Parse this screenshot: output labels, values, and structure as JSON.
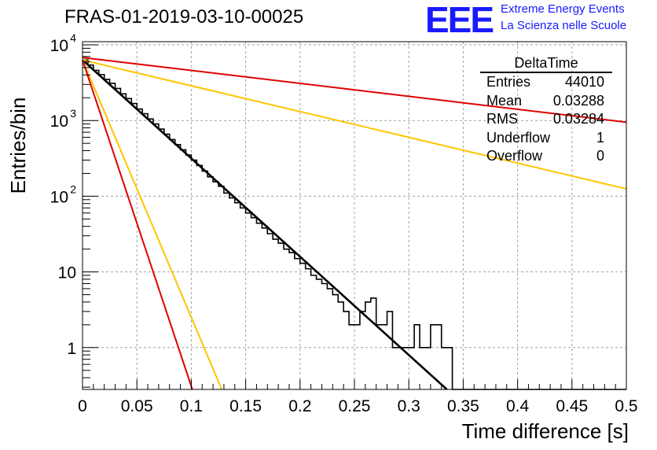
{
  "title": "FRAS-01-2019-03-10-00025",
  "logo": {
    "mark": "EEE",
    "line1": "Extreme Energy Events",
    "line2": "La Scienza nelle Scuole"
  },
  "stats": {
    "title": "DeltaTime",
    "rows": [
      {
        "label": "Entries",
        "value": "44010"
      },
      {
        "label": "Mean",
        "value": "0.03288"
      },
      {
        "label": "RMS",
        "value": "0.03284"
      },
      {
        "label": "Underflow",
        "value": "1"
      },
      {
        "label": "Overflow",
        "value": "0"
      }
    ]
  },
  "chart_data": {
    "type": "line",
    "xlabel": "Time difference [s]",
    "ylabel": "Entries/bin",
    "xlim": [
      0,
      0.5
    ],
    "ylim": [
      0.28,
      11000
    ],
    "yscale": "log",
    "grid": true,
    "x_ticks": [
      "0",
      "0.05",
      "0.1",
      "0.15",
      "0.2",
      "0.25",
      "0.3",
      "0.35",
      "0.4",
      "0.45",
      "0.5"
    ],
    "y_ticks": [
      {
        "value": 1,
        "label": "1"
      },
      {
        "value": 10,
        "label": "10"
      },
      {
        "value": 100,
        "label": "10",
        "exp": "2"
      },
      {
        "value": 1000,
        "label": "10",
        "exp": "3"
      },
      {
        "value": 10000,
        "label": "10",
        "exp": "4"
      }
    ],
    "histogram": {
      "color": "#000000",
      "bin_width": 0.005,
      "values": [
        6300,
        5400,
        4600,
        4050,
        3500,
        3100,
        2650,
        2250,
        1950,
        1680,
        1420,
        1230,
        1050,
        900,
        770,
        660,
        560,
        480,
        410,
        350,
        300,
        255,
        215,
        180,
        155,
        135,
        110,
        95,
        82,
        70,
        60,
        52,
        44,
        38,
        32,
        27,
        24,
        20,
        18,
        15,
        13,
        11,
        9,
        8,
        7,
        6,
        5,
        4,
        3,
        2,
        2,
        3,
        4,
        4.5,
        2,
        2,
        3,
        1,
        1,
        1,
        1,
        2,
        1,
        1,
        2,
        2,
        1,
        1,
        0,
        0,
        0,
        0,
        0,
        0,
        0,
        0,
        0,
        0,
        0,
        0,
        0,
        0,
        0,
        0,
        0,
        0,
        0,
        0,
        0,
        0,
        0,
        0,
        0,
        0,
        0,
        0,
        0,
        0,
        0,
        0
      ]
    },
    "fits": [
      {
        "color": "#000000",
        "x": [
          0,
          0.335
        ],
        "y": [
          6300,
          0.28
        ]
      },
      {
        "color": "#ffc400",
        "x": [
          0,
          0.5
        ],
        "y": [
          6300,
          125
        ]
      },
      {
        "color": "#e00000",
        "x": [
          0,
          0.5
        ],
        "y": [
          6800,
          950
        ]
      },
      {
        "color": "#ffc400",
        "x": [
          0,
          0.128
        ],
        "y": [
          6300,
          0.28
        ]
      },
      {
        "color": "#e00000",
        "x": [
          0,
          0.101
        ],
        "y": [
          6300,
          0.28
        ]
      }
    ]
  }
}
